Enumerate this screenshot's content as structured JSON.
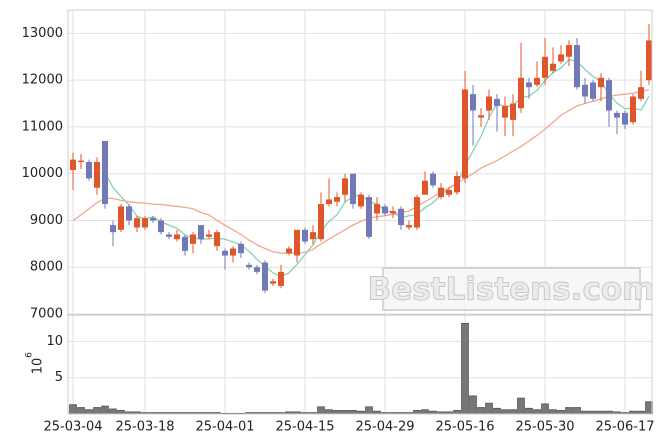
{
  "chart_data": [
    {
      "type": "candlestick",
      "open": [
        10080,
        10250,
        10250,
        9700,
        10700,
        8900,
        8800,
        9300,
        8850,
        8850,
        9050,
        9000,
        8700,
        8600,
        8650,
        8500,
        8900,
        8650,
        8450,
        8350,
        8250,
        8500,
        8050,
        8000,
        8100,
        7650,
        7600,
        8300,
        8250,
        8800,
        8600,
        8600,
        9350,
        9400,
        9550,
        10000,
        9300,
        9500,
        9150,
        9300,
        9150,
        9250,
        8850,
        8850,
        9550,
        10000,
        9500,
        9550,
        9600,
        9900,
        11700,
        11200,
        11350,
        11600,
        11200,
        11150,
        11400,
        11950,
        11900,
        12050,
        12200,
        12400,
        12500,
        12750,
        11900,
        11950,
        11850,
        12000,
        11300,
        11300,
        11100,
        11600,
        12000
      ],
      "high": [
        10450,
        10420,
        10300,
        10350,
        10700,
        9000,
        9350,
        9350,
        9100,
        9100,
        9100,
        9050,
        8750,
        8800,
        8700,
        8750,
        8900,
        8800,
        8800,
        8400,
        8450,
        8550,
        8100,
        8050,
        8150,
        7750,
        8050,
        8450,
        8800,
        8850,
        8900,
        9600,
        9900,
        9600,
        10000,
        10000,
        9600,
        9550,
        9500,
        9350,
        9300,
        9300,
        9000,
        9550,
        10050,
        10050,
        9800,
        9700,
        10050,
        12200,
        11900,
        11400,
        11800,
        11700,
        11650,
        11700,
        12800,
        12050,
        12400,
        12900,
        12700,
        12750,
        12850,
        12900,
        12050,
        12000,
        12150,
        12050,
        11350,
        11350,
        11700,
        12200,
        13200
      ],
      "low": [
        9650,
        10100,
        9850,
        9550,
        9250,
        8450,
        8750,
        8900,
        8750,
        8800,
        8950,
        8700,
        8600,
        8550,
        8250,
        8300,
        8500,
        8600,
        8350,
        7950,
        8100,
        8200,
        7950,
        7850,
        7450,
        7600,
        7550,
        8250,
        8100,
        8500,
        8500,
        8550,
        9300,
        9300,
        9400,
        9250,
        9250,
        8600,
        9000,
        9100,
        9050,
        8800,
        8800,
        8800,
        9550,
        9700,
        9450,
        9500,
        9550,
        9800,
        10600,
        11000,
        11150,
        10900,
        10800,
        10800,
        11300,
        11600,
        11850,
        11900,
        12150,
        12350,
        12300,
        11800,
        11500,
        11550,
        11550,
        11000,
        10850,
        10950,
        11050,
        11550,
        11900
      ],
      "close": [
        10300,
        10280,
        9900,
        10250,
        9350,
        8750,
        9300,
        9000,
        9050,
        9050,
        9000,
        8750,
        8650,
        8700,
        8350,
        8700,
        8600,
        8700,
        8750,
        8250,
        8400,
        8300,
        8000,
        7900,
        7500,
        7700,
        7900,
        8400,
        8800,
        8550,
        8750,
        9350,
        9450,
        9500,
        9900,
        9350,
        9550,
        8650,
        9350,
        9150,
        9200,
        8900,
        8900,
        9500,
        9850,
        9750,
        9700,
        9650,
        9950,
        11800,
        11350,
        11250,
        11650,
        11450,
        11450,
        11500,
        12050,
        11850,
        12050,
        12500,
        12350,
        12550,
        12750,
        11850,
        11650,
        11600,
        12050,
        11350,
        11200,
        11050,
        11650,
        11850,
        12850
      ],
      "up_color": "#e0562b",
      "down_color": "#7378b6",
      "lines": [
        {
          "color": "#86d3b4",
          "values": [
            null,
            null,
            null,
            null,
            10016,
            9706,
            9510,
            9330,
            9090,
            9030,
            9080,
            8970,
            8900,
            8830,
            8690,
            8630,
            8600,
            8610,
            8620,
            8600,
            8540,
            8480,
            8340,
            8170,
            8020,
            7880,
            7800,
            7880,
            8060,
            8270,
            8480,
            8770,
            8980,
            9120,
            9390,
            9510,
            9550,
            9390,
            9360,
            9210,
            9180,
            9050,
            9100,
            9130,
            9270,
            9380,
            9540,
            9690,
            9780,
            10170,
            10490,
            10800,
            11200,
            11500,
            11430,
            11460,
            11620,
            11660,
            11780,
            11990,
            12160,
            12260,
            12440,
            12400,
            12230,
            12080,
            11980,
            11700,
            11510,
            11390,
            11400,
            11360,
            11660
          ]
        },
        {
          "color": "#f0a88e",
          "values": [
            9000,
            9120,
            9250,
            9380,
            9480,
            9470,
            9430,
            9400,
            9380,
            9370,
            9350,
            9340,
            9320,
            9300,
            9280,
            9250,
            9170,
            9120,
            9000,
            8900,
            8800,
            8700,
            8580,
            8480,
            8400,
            8330,
            8300,
            8300,
            8300,
            8320,
            8380,
            8500,
            8600,
            8700,
            8800,
            8900,
            8980,
            9050,
            9080,
            9100,
            9130,
            9170,
            9200,
            9300,
            9400,
            9500,
            9600,
            9700,
            9800,
            9900,
            10000,
            10120,
            10200,
            10280,
            10380,
            10480,
            10580,
            10700,
            10820,
            10950,
            11100,
            11250,
            11350,
            11450,
            11500,
            11550,
            11600,
            11650,
            11680,
            11700,
            11720,
            11760,
            11800
          ]
        }
      ],
      "ylim": [
        7000,
        13500
      ],
      "yticks": [
        7000,
        8000,
        9000,
        10000,
        11000,
        12000,
        13000
      ],
      "grid": true,
      "watermark": "BestListens.com"
    },
    {
      "type": "bar",
      "categories": [
        "25-03-04",
        null,
        null,
        null,
        null,
        null,
        null,
        null,
        null,
        "25-03-18",
        null,
        null,
        null,
        null,
        null,
        null,
        null,
        null,
        null,
        "25-04-01",
        null,
        null,
        null,
        null,
        null,
        null,
        null,
        null,
        null,
        "25-04-15",
        null,
        null,
        null,
        null,
        null,
        null,
        null,
        null,
        null,
        "25-04-29",
        null,
        null,
        null,
        null,
        null,
        null,
        null,
        null,
        null,
        "25-05-16",
        null,
        null,
        null,
        null,
        null,
        null,
        null,
        null,
        null,
        "25-05-30",
        null,
        null,
        null,
        null,
        null,
        null,
        null,
        null,
        null,
        "25-06-17",
        null,
        null,
        null
      ],
      "values": [
        1.3,
        0.9,
        0.6,
        0.9,
        1.1,
        0.7,
        0.5,
        0.3,
        0.3,
        0.2,
        0.2,
        0.2,
        0.2,
        0.2,
        0.2,
        0.2,
        0.2,
        0.2,
        0.2,
        0.1,
        0.1,
        0.1,
        0.2,
        0.2,
        0.2,
        0.2,
        0.2,
        0.3,
        0.3,
        0.2,
        0.2,
        1.0,
        0.6,
        0.5,
        0.5,
        0.5,
        0.4,
        1.0,
        0.4,
        0.2,
        0.2,
        0.2,
        0.2,
        0.5,
        0.6,
        0.4,
        0.3,
        0.3,
        0.5,
        12.5,
        2.5,
        0.9,
        1.5,
        0.8,
        0.6,
        0.6,
        2.2,
        0.8,
        0.6,
        1.4,
        0.6,
        0.5,
        0.9,
        0.9,
        0.4,
        0.4,
        0.4,
        0.4,
        0.3,
        0.2,
        0.4,
        0.4,
        1.7
      ],
      "color": "#777777",
      "ylim": [
        0,
        13.5
      ],
      "yticks": [
        5,
        10
      ],
      "grid": true,
      "y_label": "10",
      "y_label_exponent": "6"
    }
  ]
}
